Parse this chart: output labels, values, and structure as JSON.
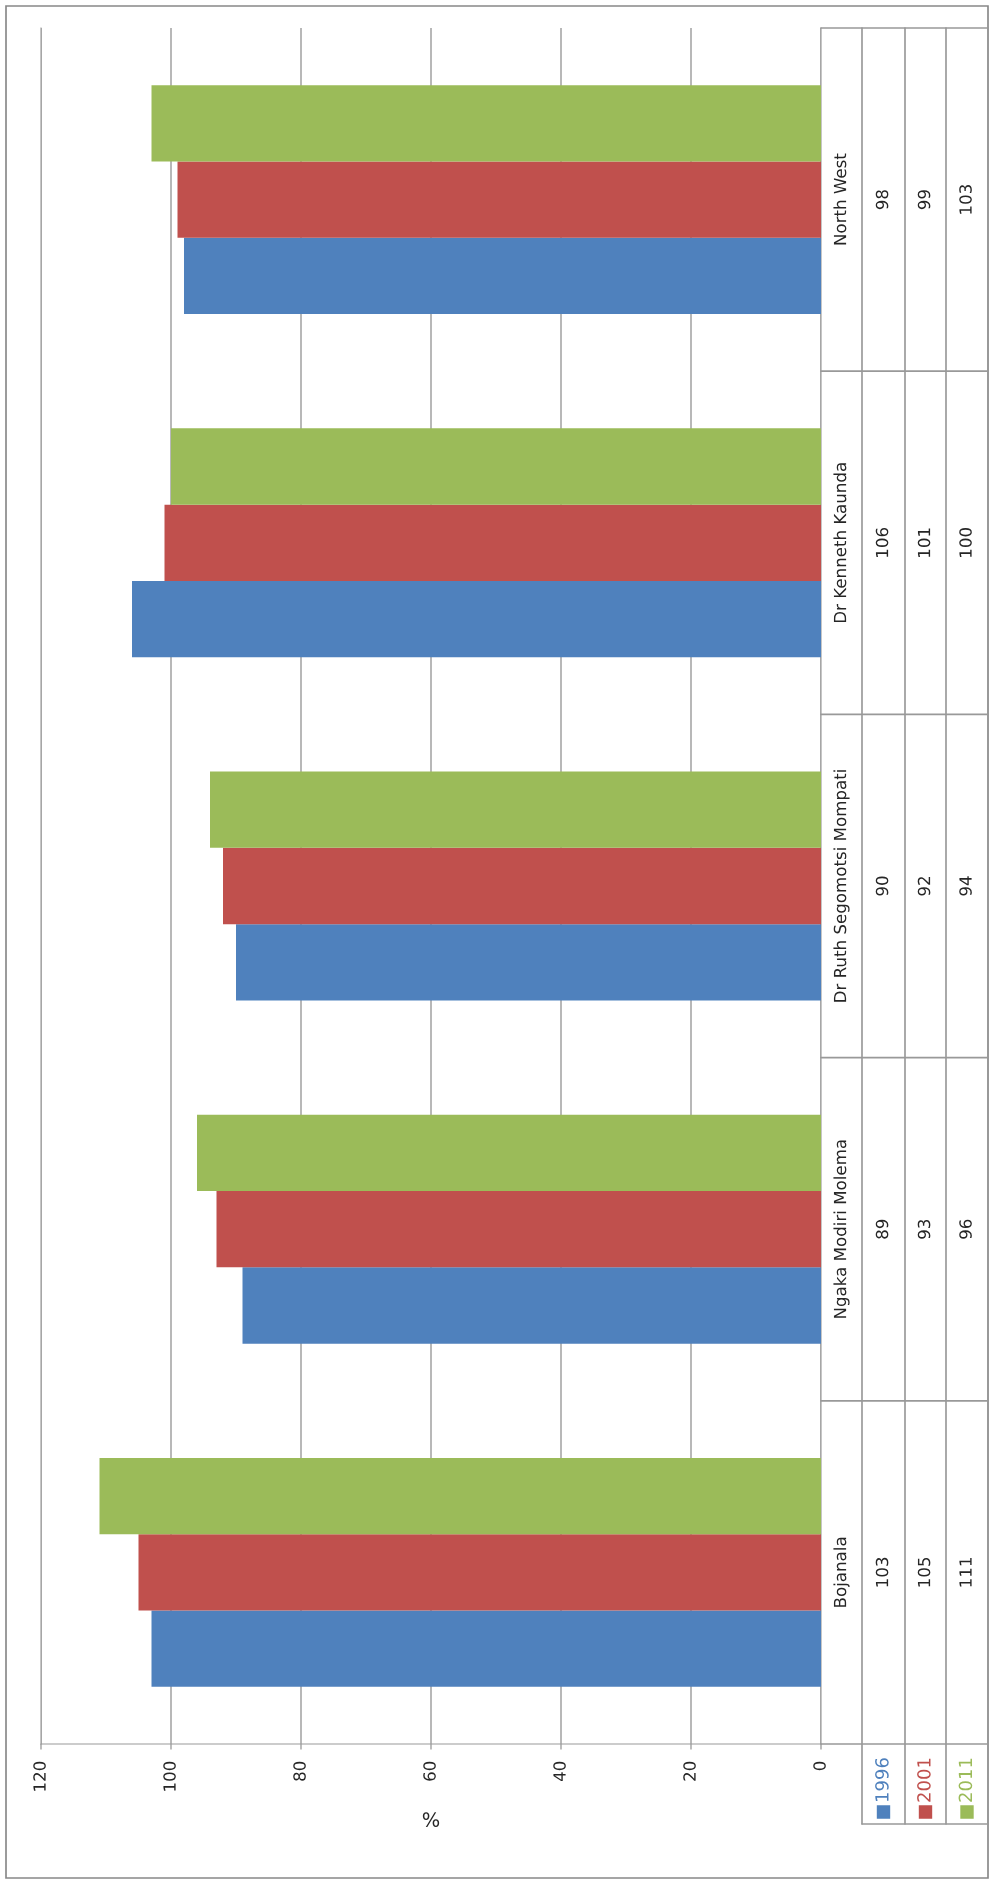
{
  "chart_data": {
    "type": "bar",
    "orientation": "horizontal",
    "xlabel": "%",
    "categories": [
      "North West",
      "Dr Kenneth Kaunda",
      "Dr Ruth Segomotsi Mompati",
      "Ngaka Modiri Molema",
      "Bojanala"
    ],
    "series": [
      {
        "name": "1996",
        "color": "#4f81bd",
        "values": [
          98,
          106,
          90,
          89,
          103
        ]
      },
      {
        "name": "2001",
        "color": "#c0504d",
        "values": [
          99,
          101,
          92,
          93,
          105
        ]
      },
      {
        "name": "2011",
        "color": "#9bbb59",
        "values": [
          103,
          100,
          94,
          96,
          111
        ]
      }
    ],
    "xlim": [
      120,
      0
    ],
    "xticks": [
      0,
      20,
      40,
      60,
      80,
      100,
      120
    ],
    "grid": "x",
    "legend": "bottom",
    "data_labels": true
  }
}
